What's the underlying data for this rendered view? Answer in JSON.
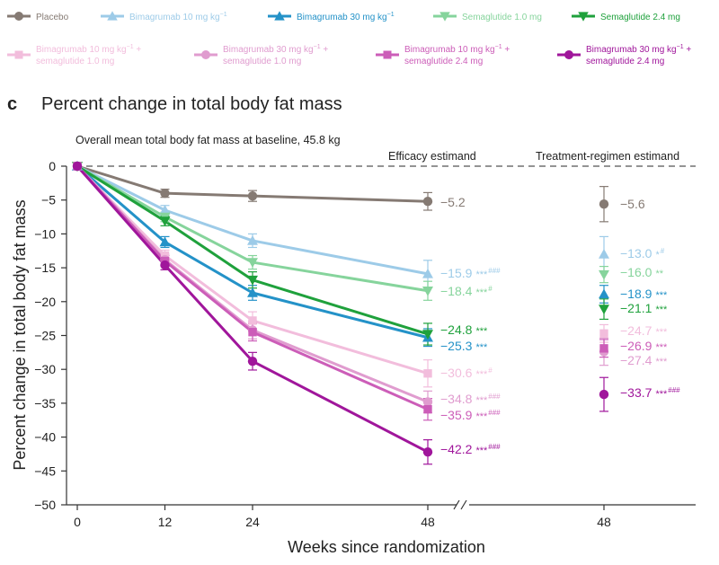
{
  "chart_data": {
    "type": "line",
    "panel_letter": "c",
    "title": "Percent change in total body fat mass",
    "baseline_note": "Overall mean total body fat mass at baseline, 45.8 kg",
    "xlabel": "Weeks since randomization",
    "ylabel": "Percent change in total body fat mass",
    "ylim": [
      -50,
      0
    ],
    "yticks": [
      0,
      -5,
      -10,
      -15,
      -20,
      -25,
      -30,
      -35,
      -40,
      -45,
      -50
    ],
    "x": [
      0,
      12,
      24,
      48
    ],
    "xtick_labels": [
      "0",
      "12",
      "24",
      "48"
    ],
    "treatment_regimen_xtick": "48",
    "efficacy_heading": "Efficacy estimand",
    "treatment_regimen_heading": "Treatment-regimen estimand",
    "series": [
      {
        "name": "Placebo",
        "legend_label": "Placebo",
        "legend_line2": "",
        "color": "#857a73",
        "marker": "circle",
        "values": [
          0,
          -4.0,
          -4.4,
          -5.2
        ],
        "errors": [
          0,
          0.6,
          0.8,
          1.3
        ],
        "efficacy_label": "−5.2",
        "efficacy_sig": "",
        "efficacy_sup": "",
        "tr_value": -5.6,
        "tr_error": 2.6,
        "tr_label": "−5.6",
        "tr_sig": "",
        "tr_sup": ""
      },
      {
        "name": "Bimagrumab 10 mg kg−1",
        "legend_label": "Bimagrumab 10 mg kg",
        "legend_sup": "−1",
        "legend_line2": "",
        "color": "#9dcbe8",
        "marker": "triangle-up",
        "values": [
          0,
          -6.5,
          -11.0,
          -15.9
        ],
        "errors": [
          0,
          0.7,
          1.0,
          2.0
        ],
        "efficacy_label": "−15.9",
        "efficacy_sig": "***",
        "efficacy_sup": "###",
        "tr_value": -13.0,
        "tr_error": 2.6,
        "tr_label": "−13.0",
        "tr_sig": "*",
        "tr_sup": "#"
      },
      {
        "name": "Bimagrumab 30 mg kg−1",
        "legend_label": "Bimagrumab 30 mg kg",
        "legend_sup": "−1",
        "legend_line2": "",
        "color": "#2492c8",
        "marker": "triangle-up",
        "values": [
          0,
          -11.2,
          -18.7,
          -25.3
        ],
        "errors": [
          0,
          0.8,
          1.1,
          1.3
        ],
        "efficacy_label": "−25.3",
        "efficacy_sig": "***",
        "efficacy_sup": "",
        "tr_value": -18.9,
        "tr_error": 1.3,
        "tr_label": "−18.9",
        "tr_sig": "***",
        "tr_sup": ""
      },
      {
        "name": "Semaglutide 1.0 mg",
        "legend_label": "Semaglutide 1.0 mg",
        "legend_line2": "",
        "color": "#86d49c",
        "marker": "triangle-down",
        "values": [
          0,
          -7.5,
          -14.2,
          -18.4
        ],
        "errors": [
          0,
          0.7,
          1.0,
          1.4
        ],
        "efficacy_label": "−18.4",
        "efficacy_sig": "***",
        "efficacy_sup": "#",
        "tr_value": -16.0,
        "tr_error": 1.2,
        "tr_label": "−16.0",
        "tr_sig": "**",
        "tr_sup": ""
      },
      {
        "name": "Semaglutide 2.4 mg",
        "legend_label": "Semaglutide 2.4 mg",
        "legend_line2": "",
        "color": "#1fa13c",
        "marker": "triangle-down",
        "values": [
          0,
          -8.1,
          -16.8,
          -24.8
        ],
        "errors": [
          0,
          0.7,
          1.2,
          1.6
        ],
        "efficacy_label": "−24.8",
        "efficacy_sig": "***",
        "efficacy_sup": "",
        "tr_value": -21.1,
        "tr_error": 1.5,
        "tr_label": "−21.1",
        "tr_sig": "***",
        "tr_sup": ""
      },
      {
        "name": "Bimagrumab 10 mg kg−1 + semaglutide 1.0 mg",
        "legend_label": "Bimagrumab 10 mg kg",
        "legend_sup": "−1",
        "legend_suffix": " +",
        "legend_line2": "semaglutide 1.0 mg",
        "color": "#f2bddc",
        "marker": "square",
        "values": [
          0,
          -13.2,
          -22.8,
          -30.6
        ],
        "errors": [
          0,
          0.8,
          1.3,
          2.0
        ],
        "efficacy_label": "−30.6",
        "efficacy_sig": "***",
        "efficacy_sup": "#",
        "tr_value": -24.7,
        "tr_error": 1.3,
        "tr_label": "−24.7",
        "tr_sig": "***",
        "tr_sup": ""
      },
      {
        "name": "Bimagrumab 30 mg kg−1 + semaglutide 1.0 mg",
        "legend_label": "Bimagrumab 30 mg kg",
        "legend_sup": "−1",
        "legend_suffix": " +",
        "legend_line2": "semaglutide 1.0 mg",
        "color": "#e09ccf",
        "marker": "circle",
        "values": [
          0,
          -13.8,
          -24.2,
          -34.8
        ],
        "errors": [
          0,
          0.8,
          1.3,
          1.6
        ],
        "efficacy_label": "−34.8",
        "efficacy_sig": "***",
        "efficacy_sup": "###",
        "tr_value": -27.4,
        "tr_error": 2.0,
        "tr_label": "−27.4",
        "tr_sig": "***",
        "tr_sup": ""
      },
      {
        "name": "Bimagrumab 10 mg kg−1 + semaglutide 2.4 mg",
        "legend_label": "Bimagrumab 10 mg kg",
        "legend_sup": "−1",
        "legend_suffix": " +",
        "legend_line2": "semaglutide 2.4 mg",
        "color": "#cc5db8",
        "marker": "square",
        "values": [
          0,
          -14.0,
          -24.5,
          -35.9
        ],
        "errors": [
          0,
          0.8,
          1.3,
          1.6
        ],
        "efficacy_label": "−35.9",
        "efficacy_sig": "***",
        "efficacy_sup": "###",
        "tr_value": -26.9,
        "tr_error": 1.3,
        "tr_label": "−26.9",
        "tr_sig": "***",
        "tr_sup": ""
      },
      {
        "name": "Bimagrumab 30 mg kg−1 + semaglutide 2.4 mg",
        "legend_label": "Bimagrumab 30 mg kg",
        "legend_sup": "−1",
        "legend_suffix": " +",
        "legend_line2": "semaglutide 2.4 mg",
        "color": "#a0169b",
        "marker": "circle",
        "values": [
          0,
          -14.6,
          -28.8,
          -42.2
        ],
        "errors": [
          0,
          0.7,
          1.3,
          1.8
        ],
        "efficacy_label": "−42.2",
        "efficacy_sig": "***",
        "efficacy_sup": "###",
        "tr_value": -33.7,
        "tr_error": 2.5,
        "tr_label": "−33.7",
        "tr_sig": "***",
        "tr_sup": "###"
      }
    ]
  }
}
